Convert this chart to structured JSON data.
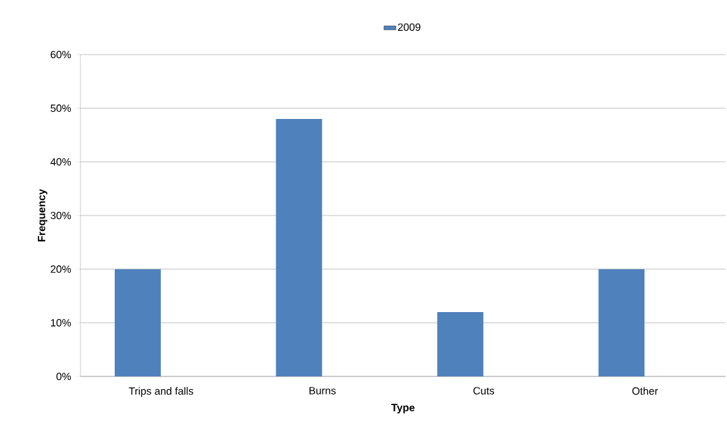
{
  "chart_data": {
    "type": "bar",
    "xlabel": "Type",
    "ylabel": "Frequency",
    "categories": [
      "Trips and falls",
      "Burns",
      "Cuts",
      "Other"
    ],
    "series": [
      {
        "name": "2009",
        "color": "#4f81bd",
        "values": [
          20,
          48,
          12,
          20
        ]
      }
    ],
    "ylim": [
      0,
      60
    ],
    "yticks": [
      {
        "value": 0,
        "label": "0%"
      },
      {
        "value": 10,
        "label": "10%"
      },
      {
        "value": 20,
        "label": "20%"
      },
      {
        "value": 30,
        "label": "30%"
      },
      {
        "value": 40,
        "label": "40%"
      },
      {
        "value": 50,
        "label": "50%"
      },
      {
        "value": 60,
        "label": "60%"
      }
    ],
    "grid": "y",
    "legend": "top"
  }
}
